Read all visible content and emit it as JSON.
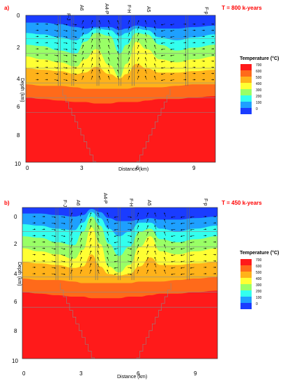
{
  "figure": {
    "panels": [
      {
        "panel_label": "a)",
        "time_label": "T = 800 k-years",
        "well_labels": [
          "F-J",
          "A6",
          "A4-P",
          "F-H",
          "A5",
          "F-p"
        ],
        "xlabel": "Distance (km)",
        "ylabel": "Depth (km)",
        "colorbar_title": "Temperature (°C)"
      },
      {
        "panel_label": "b)",
        "time_label": "T = 450 k-years",
        "well_labels": [
          "F-J",
          "A6",
          "A4-P",
          "F-H",
          "A5",
          "F-p"
        ],
        "xlabel": "Distance (km)",
        "ylabel": "Depth (km)",
        "colorbar_title": "Temperature (°C)"
      }
    ]
  },
  "chart_data": [
    {
      "type": "heatmap",
      "title": "T = 800 k-years",
      "xlabel": "Distance (km)",
      "ylabel": "Depth (km)",
      "x_ticks": [
        "0",
        "3",
        "6",
        "9"
      ],
      "y_ticks": [
        "0",
        "2",
        "4",
        "6",
        "8",
        "10"
      ],
      "xlim": [
        0,
        11.3
      ],
      "ylim": [
        10,
        0
      ],
      "colorbar": {
        "title": "Temperature (°C)",
        "levels": [
          "700",
          "600",
          "500",
          "400",
          "300",
          "200",
          "100",
          "0"
        ],
        "colors": [
          "#ff1a1a",
          "#ff6a1a",
          "#ffb21a",
          "#ffff33",
          "#99ff66",
          "#33ffee",
          "#1ea0ff",
          "#1a3cff"
        ]
      },
      "wells": [
        {
          "name": "F-J",
          "x": 2.0
        },
        {
          "name": "A6",
          "x": 2.8
        },
        {
          "name": "A4-P",
          "x": 4.3
        },
        {
          "name": "F-H",
          "x": 5.6
        },
        {
          "name": "A5",
          "x": 6.4
        },
        {
          "name": "F-p",
          "x": 9.6
        }
      ],
      "isotherm_depths_km": {
        "x": [
          0,
          1,
          2,
          3,
          3.5,
          4.2,
          5.0,
          5.6,
          6.0,
          6.6,
          7.2,
          8,
          9,
          10,
          11.3
        ],
        "T100": [
          0.5,
          0.5,
          0.6,
          0.8,
          0.9,
          0.8,
          0.8,
          1.0,
          0.9,
          0.7,
          0.8,
          0.9,
          0.9,
          0.8,
          0.7
        ],
        "T200": [
          1.2,
          1.3,
          1.5,
          1.7,
          1.3,
          0.9,
          1.0,
          1.4,
          1.2,
          0.9,
          1.0,
          1.5,
          1.7,
          1.5,
          1.3
        ],
        "T300": [
          2.0,
          2.1,
          2.4,
          2.6,
          1.8,
          1.2,
          1.4,
          2.6,
          2.0,
          1.2,
          1.3,
          2.0,
          2.4,
          2.2,
          2.0
        ],
        "T400": [
          2.8,
          3.0,
          3.2,
          3.5,
          3.0,
          2.3,
          3.4,
          4.2,
          3.3,
          1.8,
          2.3,
          3.0,
          3.2,
          3.0,
          2.8
        ],
        "T500": [
          3.6,
          3.7,
          3.8,
          4.0,
          3.9,
          3.5,
          4.0,
          4.3,
          4.0,
          3.3,
          3.6,
          3.9,
          3.9,
          3.8,
          3.7
        ],
        "T600": [
          4.7,
          4.8,
          4.8,
          4.9,
          5.0,
          5.0,
          5.0,
          5.0,
          5.0,
          4.9,
          4.9,
          4.9,
          4.8,
          4.7,
          4.7
        ],
        "T700": [
          5.6,
          5.7,
          5.8,
          5.9,
          5.9,
          6.0,
          6.0,
          5.9,
          5.9,
          5.9,
          5.8,
          5.7,
          5.7,
          5.6,
          5.5
        ]
      }
    },
    {
      "type": "heatmap",
      "title": "T = 450 k-years",
      "xlabel": "Distance (km)",
      "ylabel": "Depth (km)",
      "x_ticks": [
        "0",
        "3",
        "6",
        "9"
      ],
      "y_ticks": [
        "0",
        "2",
        "4",
        "6",
        "8",
        "10"
      ],
      "xlim": [
        0,
        11.3
      ],
      "ylim": [
        10,
        0
      ],
      "colorbar": {
        "title": "Temperature (°C)",
        "levels": [
          "700",
          "600",
          "500",
          "400",
          "300",
          "200",
          "100",
          "0"
        ],
        "colors": [
          "#ff1a1a",
          "#ff6a1a",
          "#ffb21a",
          "#ffff33",
          "#99ff66",
          "#33ffee",
          "#1ea0ff",
          "#1a3cff"
        ]
      },
      "wells": [
        {
          "name": "F-J",
          "x": 2.0
        },
        {
          "name": "A6",
          "x": 2.8
        },
        {
          "name": "A4-P",
          "x": 4.3
        },
        {
          "name": "F-H",
          "x": 5.6
        },
        {
          "name": "A5",
          "x": 6.4
        },
        {
          "name": "F-p",
          "x": 9.6
        }
      ],
      "isotherm_depths_km": {
        "x": [
          0,
          1,
          2,
          3,
          3.5,
          4.0,
          4.5,
          5.0,
          5.6,
          6.2,
          6.8,
          7.4,
          8,
          9,
          10,
          11.3
        ],
        "T100": [
          0.4,
          0.4,
          0.5,
          0.6,
          0.5,
          0.1,
          0.3,
          0.7,
          0.9,
          0.9,
          0.8,
          0.7,
          0.8,
          0.8,
          0.7,
          0.6
        ],
        "T200": [
          1.1,
          1.2,
          1.4,
          1.5,
          1.0,
          0.3,
          0.7,
          1.4,
          1.9,
          1.6,
          1.0,
          1.0,
          1.4,
          1.6,
          1.4,
          1.2
        ],
        "T300": [
          1.9,
          2.0,
          2.3,
          2.5,
          1.6,
          0.6,
          1.2,
          2.4,
          3.2,
          2.6,
          1.6,
          1.4,
          2.1,
          2.3,
          2.1,
          1.9
        ],
        "T400": [
          2.7,
          2.9,
          3.1,
          3.4,
          2.8,
          1.3,
          2.4,
          3.9,
          4.3,
          3.8,
          2.6,
          1.9,
          2.9,
          3.1,
          2.9,
          2.7
        ],
        "T500": [
          3.6,
          3.7,
          3.8,
          4.0,
          3.9,
          3.1,
          3.9,
          4.4,
          4.5,
          4.4,
          3.9,
          3.3,
          3.8,
          3.8,
          3.7,
          3.6
        ],
        "T600": [
          4.7,
          4.8,
          4.8,
          4.9,
          5.0,
          5.0,
          5.0,
          5.0,
          5.0,
          5.0,
          4.9,
          4.9,
          4.9,
          4.8,
          4.7,
          4.6
        ],
        "T700": [
          5.6,
          5.7,
          5.8,
          5.9,
          5.9,
          6.0,
          6.0,
          6.0,
          6.0,
          5.9,
          5.9,
          5.8,
          5.7,
          5.7,
          5.6,
          5.5
        ]
      }
    }
  ]
}
